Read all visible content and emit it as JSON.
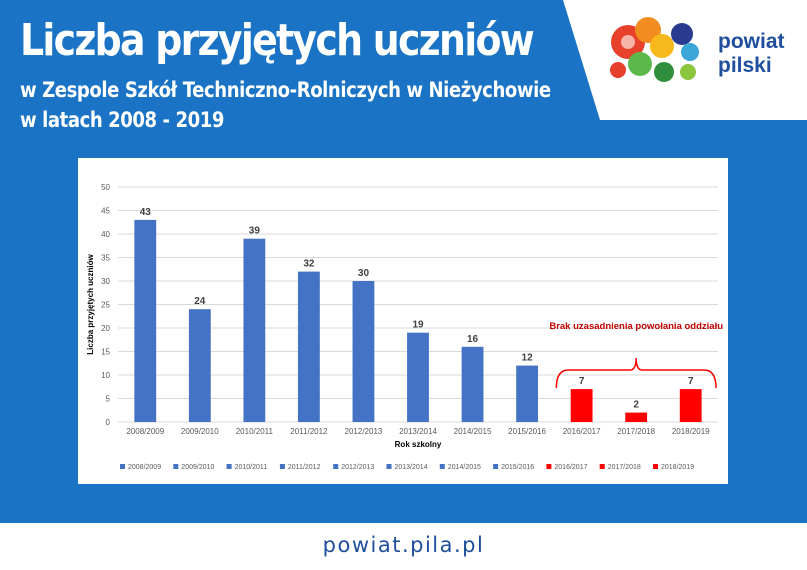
{
  "header": {
    "title": "Liczba przyjętych uczniów",
    "subtitle_line1": "w Zespole Szkół Techniczno-Rolniczych w Nieżychowie",
    "subtitle_line2": "w latach 2008 - 2019"
  },
  "logo": {
    "line1": "powiat",
    "line2": "pilski"
  },
  "footer": {
    "url": "powiat.pila.pl"
  },
  "colors": {
    "background_blue": "#1a73c4",
    "bar_blue": "#4472c4",
    "bar_red": "#ff0000",
    "annotation_red": "#c00000",
    "logo_text": "#1f4e9c"
  },
  "chart_data": {
    "type": "bar",
    "categories": [
      "2008/2009",
      "2009/2010",
      "2010/2011",
      "2011/2012",
      "2012/2013",
      "2013/2014",
      "2014/2015",
      "2015/2016",
      "2016/2017",
      "2017/2018",
      "2018/2019"
    ],
    "values": [
      43,
      24,
      39,
      32,
      30,
      19,
      16,
      12,
      7,
      2,
      7
    ],
    "bar_colors": [
      "#4472c4",
      "#4472c4",
      "#4472c4",
      "#4472c4",
      "#4472c4",
      "#4472c4",
      "#4472c4",
      "#4472c4",
      "#ff0000",
      "#ff0000",
      "#ff0000"
    ],
    "title": "",
    "xlabel": "Rok szkolny",
    "ylabel": "Liczba przyjętych uczniów",
    "ylim": [
      0,
      50
    ],
    "yticks": [
      0,
      5,
      10,
      15,
      20,
      25,
      30,
      35,
      40,
      45,
      50
    ],
    "grid": true,
    "legend": {
      "placement": "bottom",
      "entries": [
        "2008/2009",
        "2009/2010",
        "2010/2011",
        "2011/2012",
        "2012/2013",
        "2013/2014",
        "2014/2015",
        "2015/2016",
        "2016/2017",
        "2017/2018",
        "2018/2019"
      ]
    },
    "annotation": {
      "text": "Brak uzasadnienia powołania oddziału",
      "spans_categories": [
        "2016/2017",
        "2018/2019"
      ]
    }
  }
}
